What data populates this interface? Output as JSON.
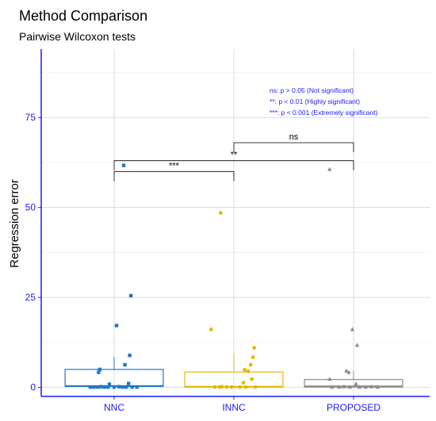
{
  "chart_data": {
    "type": "box+jitter",
    "title": "Method Comparison",
    "subtitle": "Pairwise Wilcoxon tests",
    "xlabel": "",
    "ylabel": "Regression error",
    "ylim": [
      -2.5,
      94
    ],
    "yticks": [
      0,
      25,
      50,
      75
    ],
    "grid": true,
    "categories": [
      "NNC",
      "INNC",
      "PROPOSED"
    ],
    "colors": {
      "NNC": "#1f78c8",
      "INNC": "#e6b800",
      "PROPOSED": "#8c8c8c"
    },
    "markers": {
      "NNC": "square",
      "INNC": "circle",
      "PROPOSED": "triangle"
    },
    "boxes": [
      {
        "category": "NNC",
        "q1": 0.3,
        "median": 0.4,
        "q3": 5.0,
        "whisker_low": 0,
        "whisker_high": 8.5
      },
      {
        "category": "INNC",
        "q1": 0.1,
        "median": 0.2,
        "q3": 4.3,
        "whisker_low": 0,
        "whisker_high": 9.5
      },
      {
        "category": "PROPOSED",
        "q1": 0.1,
        "median": 0.3,
        "q3": 2.2,
        "whisker_low": 0,
        "whisker_high": 4.5
      }
    ],
    "points": {
      "NNC": [
        {
          "dx": 0.08,
          "y": 61.7
        },
        {
          "dx": 0.14,
          "y": 25.5
        },
        {
          "dx": 0.02,
          "y": 17.2
        },
        {
          "dx": 0.13,
          "y": 8.9
        },
        {
          "dx": 0.09,
          "y": 6.3
        },
        {
          "dx": -0.12,
          "y": 5.0
        },
        {
          "dx": -0.13,
          "y": 4.2
        },
        {
          "dx": -0.04,
          "y": 0.9
        },
        {
          "dx": 0.12,
          "y": 1.1
        },
        {
          "dx": -0.2,
          "y": 0.1
        },
        {
          "dx": -0.17,
          "y": 0.1
        },
        {
          "dx": -0.14,
          "y": 0.1
        },
        {
          "dx": -0.11,
          "y": 0.2
        },
        {
          "dx": -0.08,
          "y": 0.1
        },
        {
          "dx": -0.05,
          "y": 0.1
        },
        {
          "dx": 0.0,
          "y": 0.1
        },
        {
          "dx": 0.04,
          "y": 0.2
        },
        {
          "dx": 0.07,
          "y": 0.1
        },
        {
          "dx": 0.1,
          "y": 0.1
        },
        {
          "dx": 0.15,
          "y": 0.1
        },
        {
          "dx": 0.19,
          "y": 0.1
        }
      ],
      "INNC": [
        {
          "dx": -0.11,
          "y": 48.5
        },
        {
          "dx": -0.19,
          "y": 16.1
        },
        {
          "dx": 0.17,
          "y": 11.0
        },
        {
          "dx": 0.16,
          "y": 8.4
        },
        {
          "dx": 0.14,
          "y": 6.3
        },
        {
          "dx": 0.09,
          "y": 4.9
        },
        {
          "dx": 0.12,
          "y": 4.5
        },
        {
          "dx": 0.15,
          "y": 2.3
        },
        {
          "dx": 0.08,
          "y": 1.3
        },
        {
          "dx": -0.16,
          "y": 0.1
        },
        {
          "dx": -0.12,
          "y": 0.1
        },
        {
          "dx": -0.1,
          "y": 0.2
        },
        {
          "dx": -0.06,
          "y": 0.1
        },
        {
          "dx": -0.02,
          "y": 0.1
        },
        {
          "dx": 0.05,
          "y": 0.1
        },
        {
          "dx": 0.1,
          "y": 0.1
        },
        {
          "dx": 0.18,
          "y": 0.1
        }
      ],
      "PROPOSED": [
        {
          "dx": -0.2,
          "y": 60.6
        },
        {
          "dx": -0.01,
          "y": 16.1
        },
        {
          "dx": 0.03,
          "y": 11.7
        },
        {
          "dx": -0.06,
          "y": 4.6
        },
        {
          "dx": -0.04,
          "y": 4.2
        },
        {
          "dx": -0.2,
          "y": 2.3
        },
        {
          "dx": 0.02,
          "y": 1.0
        },
        {
          "dx": -0.18,
          "y": 0.1
        },
        {
          "dx": -0.12,
          "y": 0.1
        },
        {
          "dx": -0.08,
          "y": 0.2
        },
        {
          "dx": -0.03,
          "y": 0.1
        },
        {
          "dx": 0.05,
          "y": 0.1
        },
        {
          "dx": 0.1,
          "y": 0.1
        },
        {
          "dx": 0.15,
          "y": 0.2
        },
        {
          "dx": 0.2,
          "y": 0.1
        }
      ]
    },
    "comparisons": [
      {
        "groups": [
          "NNC",
          "INNC"
        ],
        "label": "***",
        "y": 60.0
      },
      {
        "groups": [
          "NNC",
          "PROPOSED"
        ],
        "label": "**",
        "y": 63.0
      },
      {
        "groups": [
          "INNC",
          "PROPOSED"
        ],
        "label": "ns",
        "y": 68.0
      }
    ],
    "annotations": [
      "ns: p > 0.05 (Not significant)",
      "**: p < 0.01 (Highly significant)",
      "***: p < 0.001  (Extremely significant)"
    ]
  }
}
